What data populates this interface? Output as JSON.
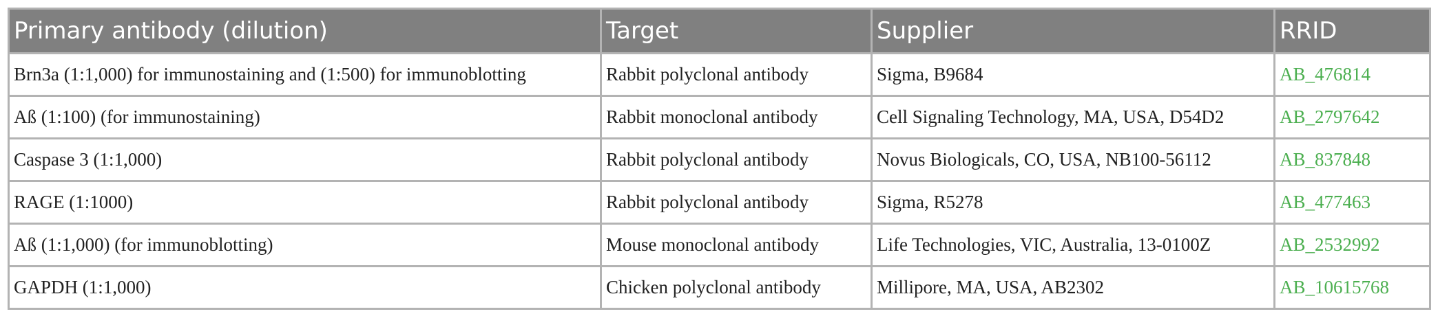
{
  "table": {
    "headers": [
      "Primary antibody (dilution)",
      "Target",
      "Supplier",
      "RRID"
    ],
    "rows": [
      {
        "antibody": "Brn3a (1:1,000) for immunostaining and (1:500) for immunoblotting",
        "target": "Rabbit polyclonal antibody",
        "supplier": "Sigma, B9684",
        "rrid": "AB_476814"
      },
      {
        "antibody": "Aß (1:100) (for immunostaining)",
        "target": "Rabbit monoclonal antibody",
        "supplier": "Cell Signaling Technology, MA, USA, D54D2",
        "rrid": "AB_2797642"
      },
      {
        "antibody": "Caspase 3 (1:1,000)",
        "target": "Rabbit polyclonal antibody",
        "supplier": "Novus Biologicals, CO, USA, NB100-56112",
        "rrid": "AB_837848"
      },
      {
        "antibody": "RAGE (1:1000)",
        "target": "Rabbit polyclonal antibody",
        "supplier": "Sigma, R5278",
        "rrid": "AB_477463"
      },
      {
        "antibody": "Aß (1:1,000) (for immunoblotting)",
        "target": "Mouse monoclonal antibody",
        "supplier": "Life Technologies, VIC, Australia, 13-0100Z",
        "rrid": "AB_2532992"
      },
      {
        "antibody": "GAPDH (1:1,000)",
        "target": "Chicken polyclonal antibody",
        "supplier": "Millipore, MA, USA, AB2302",
        "rrid": "AB_10615768"
      }
    ]
  },
  "colors": {
    "header_bg": "#808080",
    "header_text": "#ffffff",
    "link": "#4caf50",
    "border": "#b3b3b3"
  }
}
